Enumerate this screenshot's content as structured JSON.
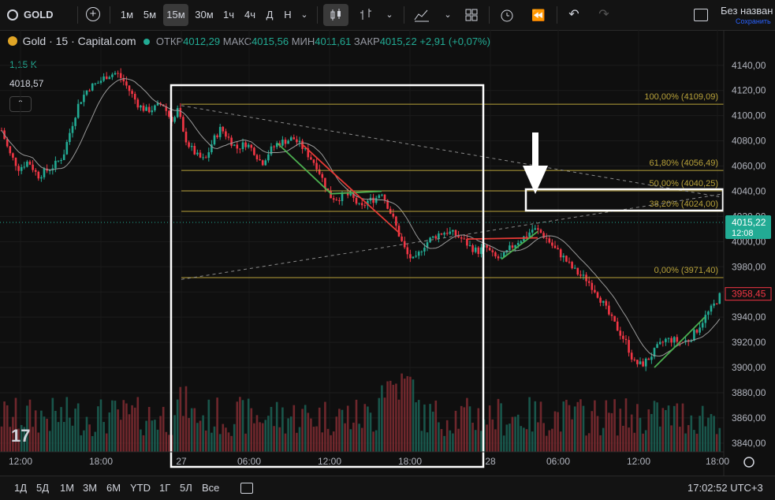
{
  "toolbar": {
    "symbol": "GOLD",
    "intervals": [
      "1м",
      "5м",
      "15м",
      "30м",
      "1ч",
      "4ч",
      "Д",
      "Н"
    ],
    "active_interval": "15м",
    "layout_name": "Без назван",
    "save_status": "Сохранить"
  },
  "legend": {
    "title": "Gold · 15 · Capital.com",
    "open_label": "ОТКР",
    "open": "4012,29",
    "high_label": "МАКС",
    "high": "4015,56",
    "low_label": "МИН",
    "low": "4011,61",
    "close_label": "ЗАКР",
    "close": "4015,22",
    "change": "+2,91 (+0,07%)",
    "volume": "1,15 K",
    "ma_value": "4018,57"
  },
  "colors": {
    "up": "#22ab94",
    "down": "#f23645",
    "fib": "#b8a23a",
    "ma": "#9a9a9a",
    "bg": "#0f0f0f"
  },
  "chart_data": {
    "type": "candlestick",
    "ylim": [
      3833,
      4148
    ],
    "yticks": [
      4140,
      4120,
      4100,
      4080,
      4060,
      4040,
      4020,
      4000,
      3980,
      3960,
      3940,
      3920,
      3900,
      3880,
      3860,
      3840
    ],
    "ytick_labels": [
      "4140,00",
      "4120,00",
      "4100,00",
      "4080,00",
      "4060,00",
      "4040,00",
      "4020,00",
      "4000,00",
      "3980,00",
      "3960,00",
      "3940,00",
      "3920,00",
      "3900,00",
      "3880,00",
      "3860,00",
      "3840,00"
    ],
    "xticks": [
      "12:00",
      "18:00",
      "27",
      "06:00",
      "12:00",
      "18:00",
      "28",
      "06:00",
      "12:00",
      "18:00"
    ],
    "close_price": 4015.22,
    "close_label": "4015,22",
    "countdown": "12:08",
    "marker_price": 3958.45,
    "marker_label": "3958,45",
    "price_path": [
      [
        0,
        4092
      ],
      [
        12,
        4070
      ],
      [
        24,
        4058
      ],
      [
        36,
        4064
      ],
      [
        48,
        4052
      ],
      [
        58,
        4056
      ],
      [
        68,
        4060
      ],
      [
        80,
        4068
      ],
      [
        90,
        4090
      ],
      [
        100,
        4110
      ],
      [
        112,
        4122
      ],
      [
        124,
        4126
      ],
      [
        136,
        4132
      ],
      [
        148,
        4134
      ],
      [
        156,
        4128
      ],
      [
        166,
        4118
      ],
      [
        176,
        4108
      ],
      [
        186,
        4104
      ],
      [
        196,
        4106
      ],
      [
        206,
        4110
      ],
      [
        214,
        4100
      ],
      [
        220,
        4096
      ],
      [
        226,
        4106
      ],
      [
        232,
        4086
      ],
      [
        240,
        4076
      ],
      [
        250,
        4068
      ],
      [
        260,
        4064
      ],
      [
        270,
        4080
      ],
      [
        280,
        4090
      ],
      [
        290,
        4082
      ],
      [
        300,
        4074
      ],
      [
        312,
        4078
      ],
      [
        322,
        4072
      ],
      [
        332,
        4062
      ],
      [
        342,
        4072
      ],
      [
        352,
        4078
      ],
      [
        362,
        4080
      ],
      [
        372,
        4082
      ],
      [
        382,
        4076
      ],
      [
        392,
        4068
      ],
      [
        402,
        4060
      ],
      [
        410,
        4048
      ],
      [
        418,
        4036
      ],
      [
        428,
        4034
      ],
      [
        438,
        4038
      ],
      [
        448,
        4034
      ],
      [
        458,
        4026
      ],
      [
        466,
        4032
      ],
      [
        476,
        4034
      ],
      [
        484,
        4040
      ],
      [
        492,
        4028
      ],
      [
        500,
        4016
      ],
      [
        508,
        4002
      ],
      [
        516,
        3990
      ],
      [
        526,
        3984
      ],
      [
        536,
        3996
      ],
      [
        546,
        4002
      ],
      [
        556,
        4006
      ],
      [
        566,
        4008
      ],
      [
        576,
        4006
      ],
      [
        586,
        4002
      ],
      [
        596,
        3996
      ],
      [
        606,
        3992
      ],
      [
        616,
        3996
      ],
      [
        626,
        3988
      ],
      [
        636,
        3986
      ],
      [
        646,
        3994
      ],
      [
        656,
        4000
      ],
      [
        666,
        4004
      ],
      [
        676,
        4010
      ],
      [
        684,
        4008
      ],
      [
        694,
        4002
      ],
      [
        704,
        3994
      ],
      [
        714,
        3988
      ],
      [
        724,
        3980
      ],
      [
        734,
        3974
      ],
      [
        744,
        3970
      ],
      [
        754,
        3962
      ],
      [
        764,
        3952
      ],
      [
        774,
        3940
      ],
      [
        784,
        3930
      ],
      [
        794,
        3920
      ],
      [
        804,
        3904
      ],
      [
        814,
        3902
      ],
      [
        824,
        3908
      ],
      [
        834,
        3916
      ],
      [
        844,
        3922
      ],
      [
        854,
        3922
      ],
      [
        864,
        3920
      ],
      [
        874,
        3922
      ],
      [
        884,
        3930
      ],
      [
        894,
        3940
      ],
      [
        904,
        3948
      ],
      [
        914,
        3958
      ]
    ],
    "fib_levels": [
      {
        "ratio": "100,00%",
        "price": 4109.09,
        "label": "100,00% (4109,09)"
      },
      {
        "ratio": "61,80%",
        "price": 4056.49,
        "label": "61,80% (4056,49)"
      },
      {
        "ratio": "50,00%",
        "price": 4040.25,
        "label": "50,00% (4040,25)"
      },
      {
        "ratio": "38,20%",
        "price": 4024.0,
        "label": "38,20% (4024,00)"
      },
      {
        "ratio": "0,00%",
        "price": 3971.4,
        "label": "0,00% (3971,40)"
      }
    ]
  },
  "bottom": {
    "ranges": [
      "1Д",
      "5Д",
      "1М",
      "3М",
      "6М",
      "YTD",
      "1Г",
      "5Л",
      "Все"
    ],
    "clock": "17:02:52 UTC+3"
  }
}
